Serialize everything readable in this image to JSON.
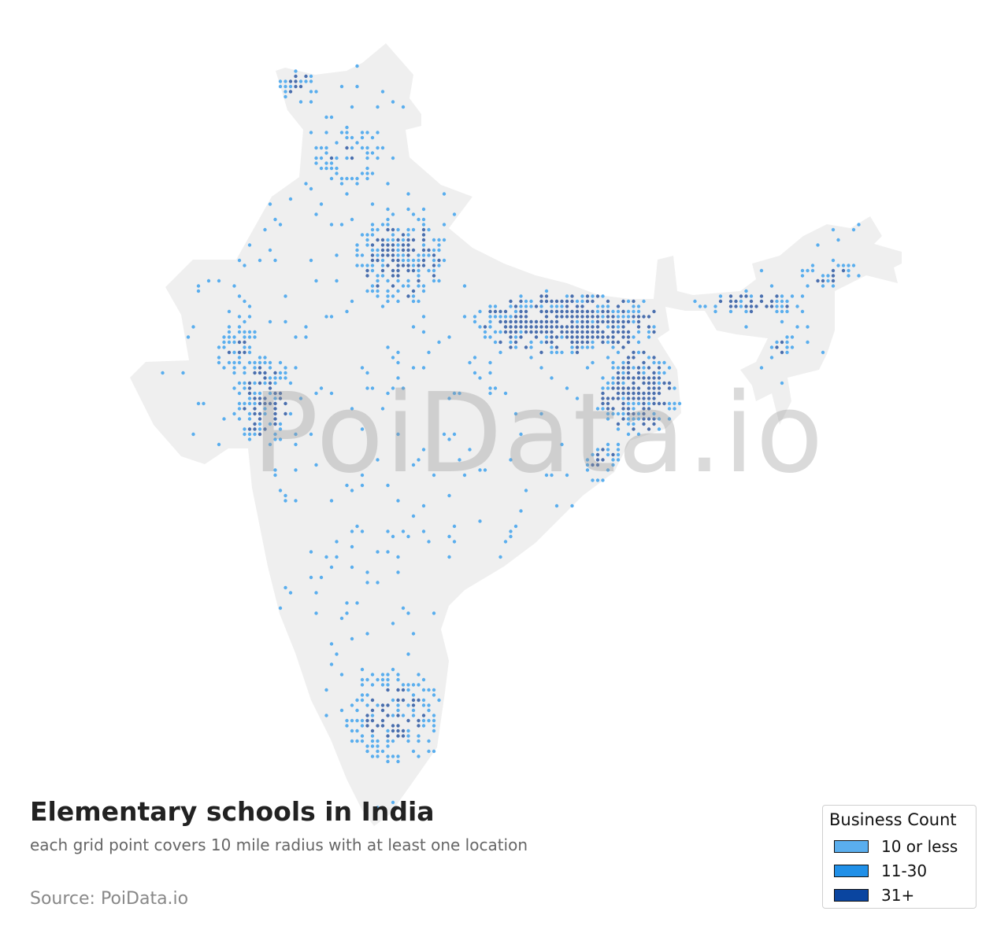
{
  "title": "Elementary schools in India",
  "subtitle": "each grid point covers 10 mile radius with at least one location",
  "source": "Source: PoiData.io",
  "watermark": "PoiData.io",
  "legend": {
    "title": "Business Count",
    "items": [
      {
        "label": "10 or less",
        "color": "#5aaeee"
      },
      {
        "label": "11-30",
        "color": "#2090e8"
      },
      {
        "label": "31+",
        "color": "#0a45a0"
      }
    ]
  },
  "colors": {
    "land": "#efefef",
    "dot_low": "#5aaeee",
    "dot_high": "#4a6fae"
  }
}
